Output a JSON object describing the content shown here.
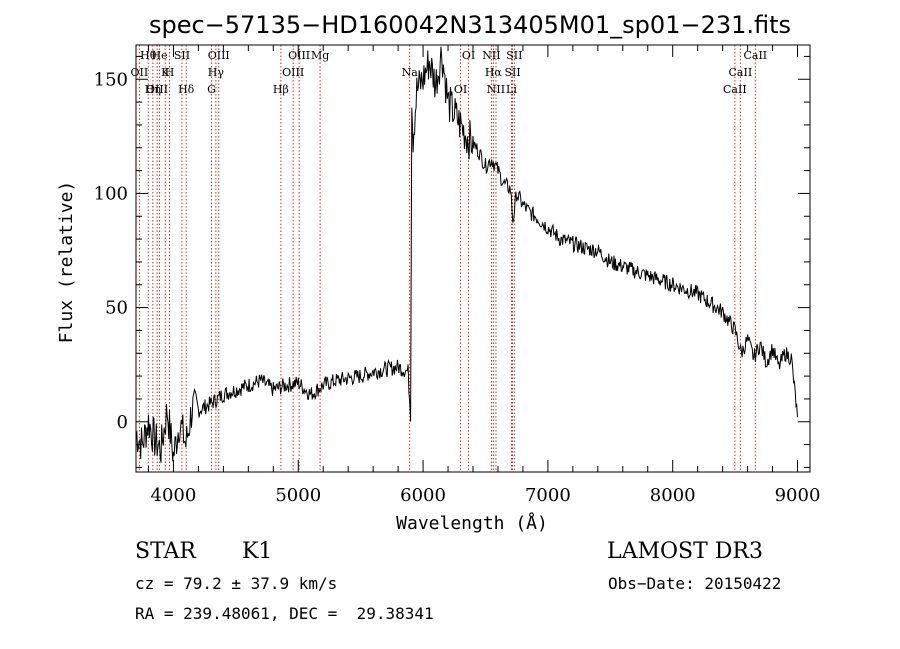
{
  "chart_data": {
    "type": "line",
    "title": "spec−57135−HD160042N313405M01_sp01−231.fits",
    "xlabel": "Wavelength (Å)",
    "ylabel": "Flux (relative)",
    "xlim": [
      3700,
      9100
    ],
    "ylim": [
      -22,
      165
    ],
    "x_ticks": [
      4000,
      5000,
      6000,
      7000,
      8000,
      9000
    ],
    "y_ticks": [
      0,
      50,
      100,
      150
    ],
    "grid": false,
    "series": [
      {
        "color": "#000000",
        "x": [
          3700,
          3750,
          3800,
          3850,
          3900,
          3950,
          4000,
          4050,
          4100,
          4150,
          4200,
          4300,
          4400,
          4500,
          4600,
          4700,
          4800,
          4900,
          5000,
          5100,
          5200,
          5300,
          5400,
          5500,
          5600,
          5700,
          5800,
          5880,
          5900,
          5910,
          5920,
          5950,
          6000,
          6050,
          6100,
          6150,
          6200,
          6250,
          6300,
          6350,
          6400,
          6450,
          6500,
          6550,
          6600,
          6650,
          6700,
          6720,
          6750,
          6800,
          6850,
          6900,
          7000,
          7100,
          7200,
          7300,
          7400,
          7500,
          7600,
          7700,
          7800,
          7900,
          8000,
          8100,
          8200,
          8300,
          8400,
          8500,
          8550,
          8600,
          8650,
          8700,
          8750,
          8800,
          8850,
          8900,
          8950,
          9000
        ],
        "y": [
          -5,
          -10,
          0,
          -8,
          -12,
          5,
          -15,
          0,
          -10,
          6,
          5,
          8,
          12,
          14,
          16,
          18,
          14,
          16,
          17,
          12,
          16,
          18,
          19,
          20,
          22,
          23,
          24,
          22,
          3,
          140,
          125,
          145,
          150,
          158,
          148,
          162,
          140,
          135,
          130,
          125,
          122,
          118,
          112,
          115,
          110,
          104,
          102,
          88,
          100,
          95,
          92,
          90,
          85,
          80,
          78,
          76,
          75,
          70,
          68,
          66,
          64,
          62,
          60,
          58,
          56,
          52,
          48,
          40,
          30,
          36,
          28,
          34,
          26,
          32,
          24,
          30,
          28,
          2
        ]
      }
    ],
    "line_markers": [
      {
        "label": "Hθ",
        "x": 3798
      },
      {
        "label": "OII",
        "x": 3727
      },
      {
        "label": "OIII",
        "x": 3869
      },
      {
        "label": "He",
        "x": 3889
      },
      {
        "label": "K",
        "x": 3934
      },
      {
        "label": "Hη",
        "x": 3835
      },
      {
        "label": "SII",
        "x": 4068
      },
      {
        "label": "H",
        "x": 3969
      },
      {
        "label": "Hδ",
        "x": 4102
      },
      {
        "label": "OIII",
        "x": 4363
      },
      {
        "label": "Hγ",
        "x": 4340
      },
      {
        "label": "G",
        "x": 4305
      },
      {
        "label": "OIII",
        "x": 5007
      },
      {
        "label": "OIII",
        "x": 4959
      },
      {
        "label": "Hβ",
        "x": 4861
      },
      {
        "label": "Mg",
        "x": 5175
      },
      {
        "label": "Na",
        "x": 5893
      },
      {
        "label": "OI",
        "x": 6300
      },
      {
        "label": "OI",
        "x": 6364
      },
      {
        "label": "Hα",
        "x": 6563
      },
      {
        "label": "NII",
        "x": 6584
      },
      {
        "label": "NII",
        "x": 6548
      },
      {
        "label": "SII",
        "x": 6717
      },
      {
        "label": "Li",
        "x": 6708
      },
      {
        "label": "SII",
        "x": 6731
      },
      {
        "label": "CaII",
        "x": 8542
      },
      {
        "label": "CaII",
        "x": 8498
      },
      {
        "label": "CaII",
        "x": 8662
      }
    ]
  },
  "info": {
    "class": "STAR",
    "subclass": "K1",
    "survey": "LAMOST DR3",
    "cz": "cz = 79.2 ± 37.9 km/s",
    "obs_date": "Obs−Date: 20150422",
    "coords": "RA = 239.48061, DEC =  29.38341"
  }
}
